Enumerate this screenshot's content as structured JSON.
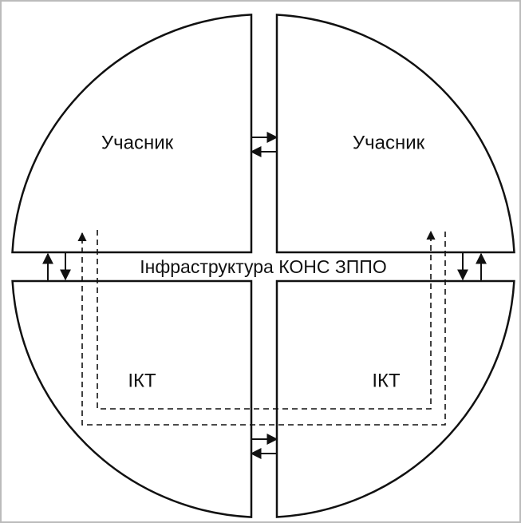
{
  "quadrants": [
    {
      "label": "Учасник"
    },
    {
      "label": "Учасник"
    },
    {
      "label": "ІКТ"
    },
    {
      "label": "ІКТ"
    }
  ],
  "center_label": "Інфраструктура КОНС ЗППО"
}
